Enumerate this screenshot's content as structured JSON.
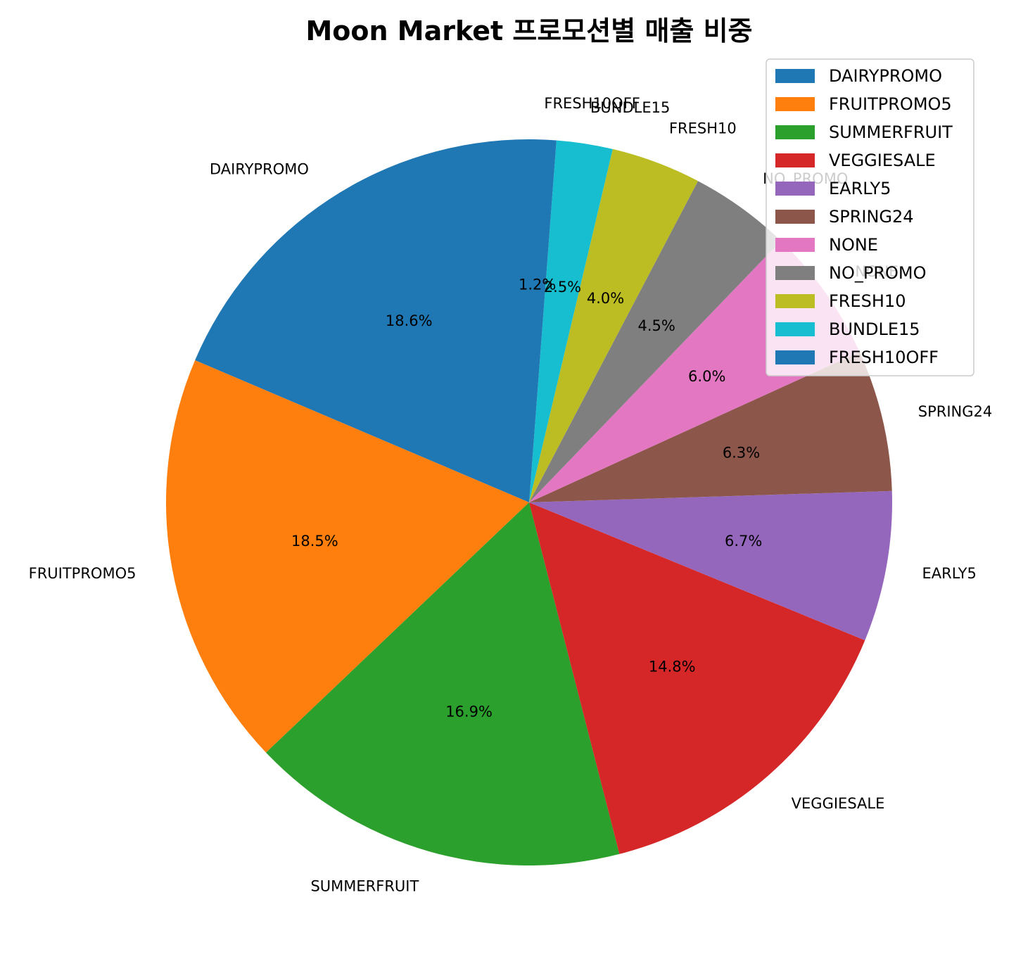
{
  "chart_data": {
    "type": "pie",
    "title": "Moon Market 프로모션별 매출 비중",
    "categories": [
      "DAIRYPROMO",
      "FRUITPROMO5",
      "SUMMERFRUIT",
      "VEGGIESALE",
      "EARLY5",
      "SPRING24",
      "NONE",
      "NO_PROMO",
      "FRESH10",
      "BUNDLE15",
      "FRESH10OFF"
    ],
    "values": [
      18.6,
      18.5,
      16.9,
      14.8,
      6.7,
      6.3,
      6.0,
      4.5,
      4.0,
      2.5,
      1.2
    ],
    "value_labels": [
      "18.6%",
      "18.5%",
      "16.9%",
      "14.8%",
      "6.7%",
      "6.3%",
      "6.0%",
      "4.5%",
      "4.0%",
      "2.5%",
      "1.2%"
    ],
    "colors": [
      "#1f77b4",
      "#ff7f0e",
      "#2ca02c",
      "#d62728",
      "#9467bd",
      "#8c564b",
      "#e377c2",
      "#7f7f7f",
      "#bcbd22",
      "#17becf",
      "#1f77b4"
    ],
    "start_angle": 90,
    "direction": "counterclockwise",
    "legend": {
      "placement": "top-right",
      "entries": [
        "DAIRYPROMO",
        "FRUITPROMO5",
        "SUMMERFRUIT",
        "VEGGIESALE",
        "EARLY5",
        "SPRING24",
        "NONE",
        "NO_PROMO",
        "FRESH10",
        "BUNDLE15",
        "FRESH10OFF"
      ]
    }
  }
}
